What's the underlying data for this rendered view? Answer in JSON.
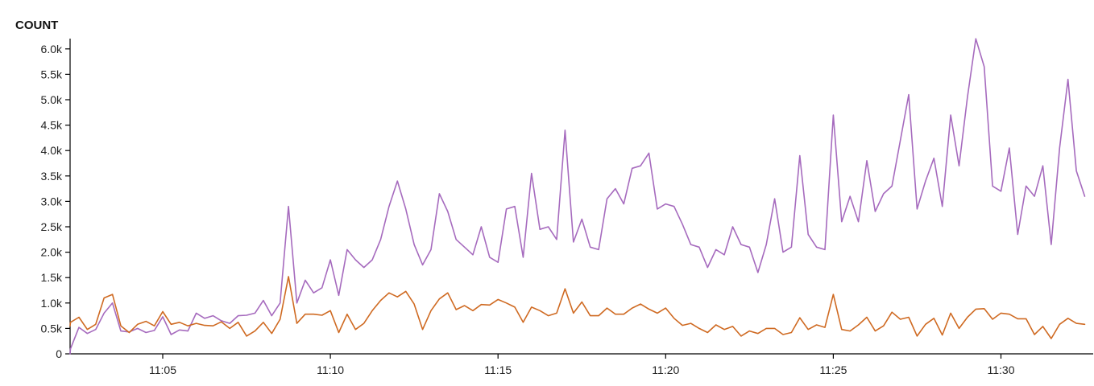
{
  "chart_data": {
    "type": "line",
    "ylabel": "COUNT",
    "xlabel": "",
    "ylim": [
      0,
      6200
    ],
    "y_ticks": [
      {
        "value": 0,
        "label": "0"
      },
      {
        "value": 500,
        "label": "0.5k"
      },
      {
        "value": 1000,
        "label": "1.0k"
      },
      {
        "value": 1500,
        "label": "1.5k"
      },
      {
        "value": 2000,
        "label": "2.0k"
      },
      {
        "value": 2500,
        "label": "2.5k"
      },
      {
        "value": 3000,
        "label": "3.0k"
      },
      {
        "value": 3500,
        "label": "3.5k"
      },
      {
        "value": 4000,
        "label": "4.0k"
      },
      {
        "value": 4500,
        "label": "4.5k"
      },
      {
        "value": 5000,
        "label": "5.0k"
      },
      {
        "value": 5500,
        "label": "5.5k"
      },
      {
        "value": 6000,
        "label": "6.0k"
      }
    ],
    "x_ticks": [
      "11:05",
      "11:10",
      "11:15",
      "11:20",
      "11:25",
      "11:30"
    ],
    "x_start": "11:02:00",
    "x_step_seconds": 15,
    "grid": false,
    "legend": "none",
    "series": [
      {
        "color": "#a66bbe",
        "values": [
          0,
          100,
          520,
          400,
          480,
          800,
          1000,
          450,
          430,
          500,
          420,
          460,
          730,
          380,
          470,
          450,
          800,
          700,
          750,
          650,
          600,
          750,
          760,
          800,
          1050,
          750,
          1000,
          2900,
          1000,
          1450,
          1200,
          1300,
          1850,
          1150,
          2050,
          1850,
          1700,
          1850,
          2250,
          2900,
          3400,
          2850,
          2150,
          1750,
          2050,
          3150,
          2800,
          2250,
          2100,
          1950,
          2500,
          1900,
          1800,
          2850,
          2900,
          1900,
          3550,
          2450,
          2500,
          2250,
          4400,
          2200,
          2650,
          2100,
          2050,
          3050,
          3250,
          2950,
          3650,
          3700,
          3950,
          2850,
          2950,
          2900,
          2550,
          2150,
          2100,
          1700,
          2050,
          1950,
          2500,
          2150,
          2100,
          1600,
          2150,
          3050,
          2000,
          2100,
          3900,
          2350,
          2100,
          2050,
          4700,
          2600,
          3100,
          2600,
          3800,
          2800,
          3150,
          3300,
          4200,
          5100,
          2850,
          3400,
          3850,
          2900,
          4700,
          3700,
          5050,
          6200,
          5650,
          3300,
          3200,
          4050,
          2350,
          3300,
          3100,
          3700,
          2150,
          4050,
          5400,
          3600,
          3100
        ]
      },
      {
        "color": "#cf6a22",
        "values": [
          550,
          620,
          720,
          480,
          580,
          1100,
          1170,
          550,
          420,
          580,
          640,
          550,
          830,
          580,
          620,
          550,
          600,
          560,
          550,
          630,
          500,
          620,
          350,
          450,
          620,
          400,
          680,
          1520,
          600,
          780,
          780,
          760,
          850,
          420,
          780,
          480,
          600,
          850,
          1050,
          1200,
          1120,
          1230,
          980,
          480,
          850,
          1080,
          1200,
          870,
          950,
          850,
          970,
          960,
          1070,
          1000,
          920,
          620,
          920,
          850,
          750,
          800,
          1280,
          800,
          1020,
          750,
          750,
          900,
          780,
          780,
          900,
          980,
          880,
          800,
          900,
          700,
          560,
          600,
          500,
          420,
          570,
          480,
          540,
          350,
          450,
          400,
          500,
          500,
          380,
          420,
          710,
          480,
          570,
          520,
          1170,
          480,
          450,
          570,
          720,
          450,
          550,
          820,
          680,
          720,
          350,
          580,
          700,
          370,
          800,
          500,
          720,
          880,
          890,
          680,
          800,
          780,
          690,
          690,
          380,
          540,
          300,
          580,
          700,
          600,
          580
        ]
      }
    ]
  }
}
